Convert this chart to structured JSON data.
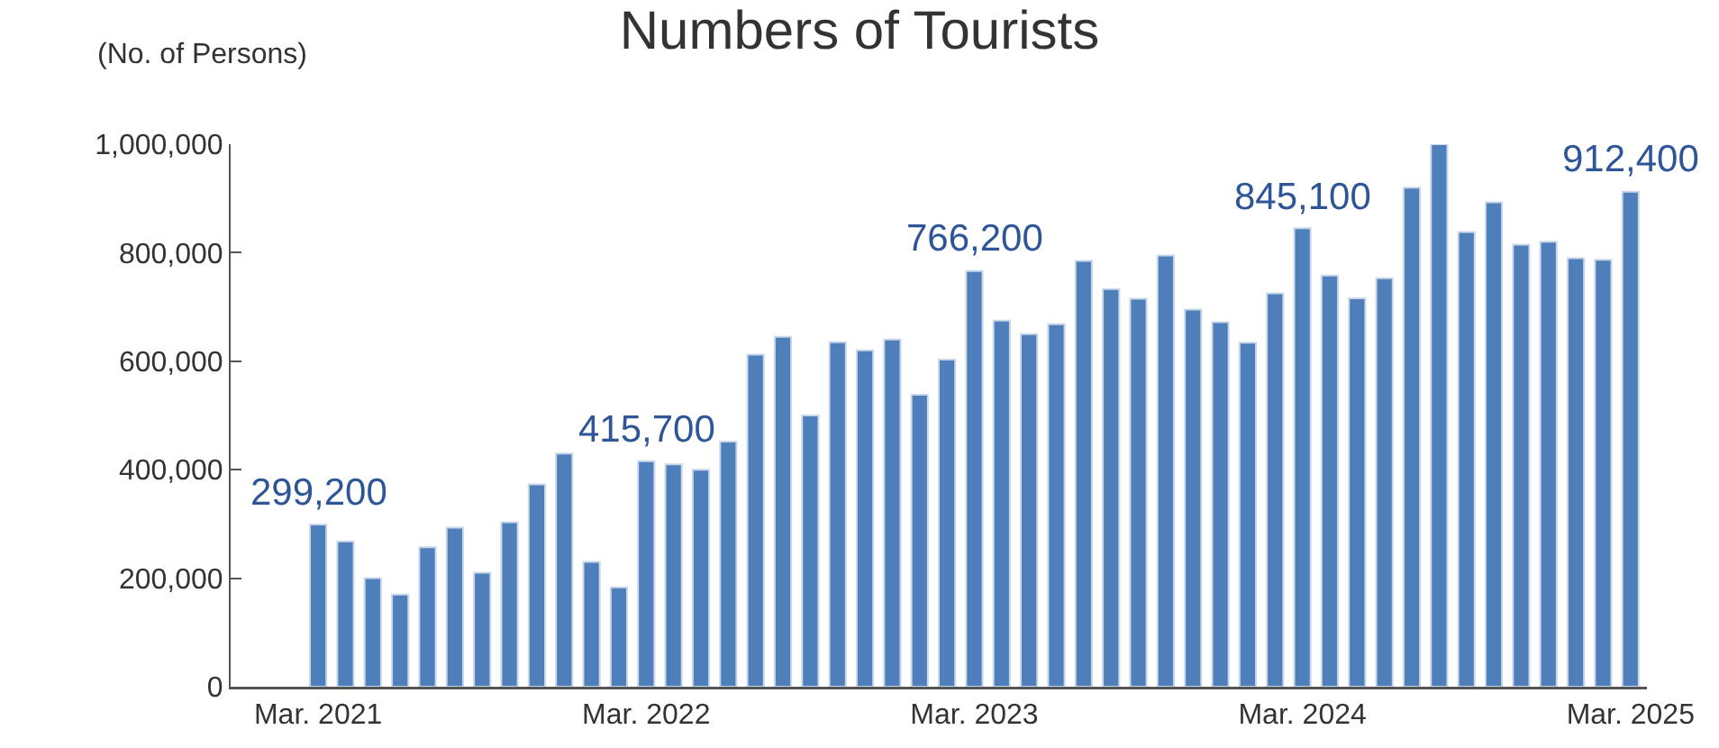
{
  "chart_data": {
    "type": "bar",
    "title": "Numbers of Tourists",
    "ylabel": "(No. of Persons)",
    "categories": [
      "Mar. 2021",
      null,
      null,
      null,
      null,
      null,
      null,
      null,
      null,
      null,
      null,
      null,
      "Mar. 2022",
      null,
      null,
      null,
      null,
      null,
      null,
      null,
      null,
      null,
      null,
      null,
      "Mar. 2023",
      null,
      null,
      null,
      null,
      null,
      null,
      null,
      null,
      null,
      null,
      null,
      "Mar. 2024",
      null,
      null,
      null,
      null,
      null,
      null,
      null,
      null,
      null,
      null,
      null,
      "Mar. 2025"
    ],
    "values": [
      299200,
      268000,
      200000,
      170000,
      257000,
      293000,
      210000,
      303000,
      373000,
      430000,
      230000,
      183000,
      415700,
      410000,
      400000,
      452000,
      612000,
      645000,
      500000,
      635000,
      620000,
      640000,
      538000,
      603000,
      766200,
      675000,
      650000,
      668000,
      785000,
      733000,
      715000,
      795000,
      695000,
      672000,
      634000,
      725000,
      845100,
      758000,
      716000,
      753000,
      920000,
      1000000,
      838000,
      893000,
      815000,
      820000,
      790000,
      787000,
      912400
    ],
    "value_labels": [
      "299,200",
      null,
      null,
      null,
      null,
      null,
      null,
      null,
      null,
      null,
      null,
      null,
      "415,700",
      null,
      null,
      null,
      null,
      null,
      null,
      null,
      null,
      null,
      null,
      null,
      "766,200",
      null,
      null,
      null,
      null,
      null,
      null,
      null,
      null,
      null,
      null,
      null,
      "845,100",
      null,
      null,
      null,
      null,
      null,
      null,
      null,
      null,
      null,
      null,
      null,
      "912,400"
    ],
    "color": "#4f7fba",
    "ylim": [
      0,
      1000000
    ],
    "yticks": [
      {
        "value": 0,
        "label": "0"
      },
      {
        "value": 200000,
        "label": "200,000"
      },
      {
        "value": 400000,
        "label": "400,000"
      },
      {
        "value": 600000,
        "label": "600,000"
      },
      {
        "value": 800000,
        "label": "800,000"
      },
      {
        "value": 1000000,
        "label": "1,000,000"
      }
    ],
    "grid": false
  }
}
